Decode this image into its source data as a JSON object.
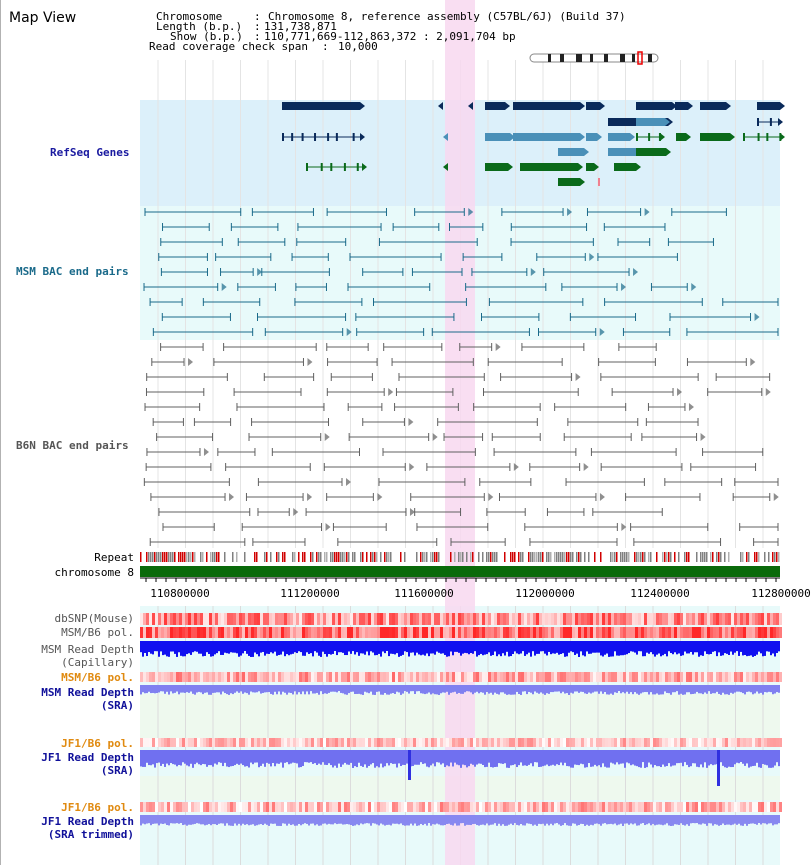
{
  "title": "Map View",
  "info": {
    "chromosome_label": "Chromosome",
    "chromosome_value": "Chromosome 8, reference assembly (C57BL/6J) (Build 37)",
    "length_label": "Length (b.p.)",
    "length_value": "131,738,871",
    "show_label": "Show (b.p.)",
    "show_value": "110,771,669-112,863,372 : 2,091,704 bp",
    "coverage_label": "Read coverage check span",
    "coverage_value": "10,000"
  },
  "tracks": {
    "refseq": "RefSeq Genes",
    "msm_bac": "MSM BAC end pairs",
    "b6n_bac": "B6N BAC end pairs",
    "repeat": "Repeat",
    "chromosome": "chromosome 8",
    "dbsnp": "dbSNP(Mouse)",
    "msm_b6_pol": "MSM/B6 pol.",
    "msm_depth_cap_1": "MSM Read Depth",
    "msm_depth_cap_2": "(Capillary)",
    "msm_b6_pol2": "MSM/B6 pol.",
    "msm_depth_sra_1": "MSM Read Depth",
    "msm_depth_sra_2": "(SRA)",
    "jf1_b6_pol": "JF1/B6 pol.",
    "jf1_depth_sra_1": "JF1 Read Depth",
    "jf1_depth_sra_2": "(SRA)",
    "jf1_b6_pol2": "JF1/B6 pol.",
    "jf1_depth_trim_1": "JF1 Read Depth",
    "jf1_depth_trim_2": "(SRA trimmed)"
  },
  "axis": {
    "ticks": [
      "110800000",
      "111200000",
      "111600000",
      "112000000",
      "112400000",
      "112800000"
    ]
  },
  "colors": {
    "refseq_bg": "#dcf0fa",
    "bac_bg": "#e8fafa",
    "highlight": "#f8d8f0",
    "gene_navy": "#0a2a5a",
    "gene_steel": "#4a90b8",
    "gene_green": "#0a6a1a",
    "msm_pair": "#1a6a8a",
    "b6n_pair": "#606060",
    "chrom": "#0a6a0a",
    "msm_label": "#1a6a8a",
    "refseq_label": "#1a1aa0",
    "orange_label": "#e08a10",
    "blue_label": "#10109a"
  }
}
